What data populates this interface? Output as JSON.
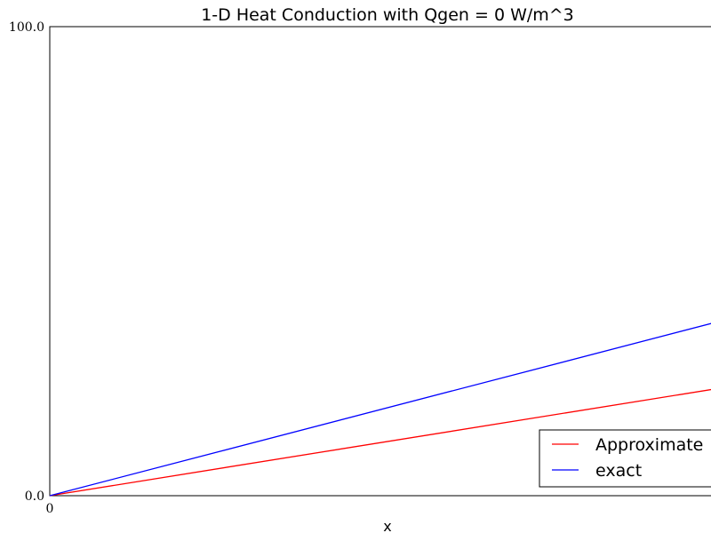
{
  "chart_data": {
    "type": "line",
    "title": "1-D Heat Conduction with Qgen = 0 W/m^3",
    "xlabel": "x",
    "ylabel": "",
    "xlim": [
      0,
      1
    ],
    "ylim": [
      0,
      100
    ],
    "x_ticks": [
      {
        "value": 0,
        "label": "0"
      }
    ],
    "y_ticks": [
      {
        "value": 0,
        "label": "0.0"
      },
      {
        "value": 100,
        "label": "100.0"
      }
    ],
    "grid": false,
    "legend": "lower-right",
    "series": [
      {
        "name": "Approximate",
        "color": "#ff0000",
        "x": [
          0,
          1
        ],
        "y": [
          0,
          23.1
        ]
      },
      {
        "name": "exact",
        "color": "#0000ff",
        "x": [
          0,
          1
        ],
        "y": [
          0,
          37.5
        ]
      }
    ]
  }
}
